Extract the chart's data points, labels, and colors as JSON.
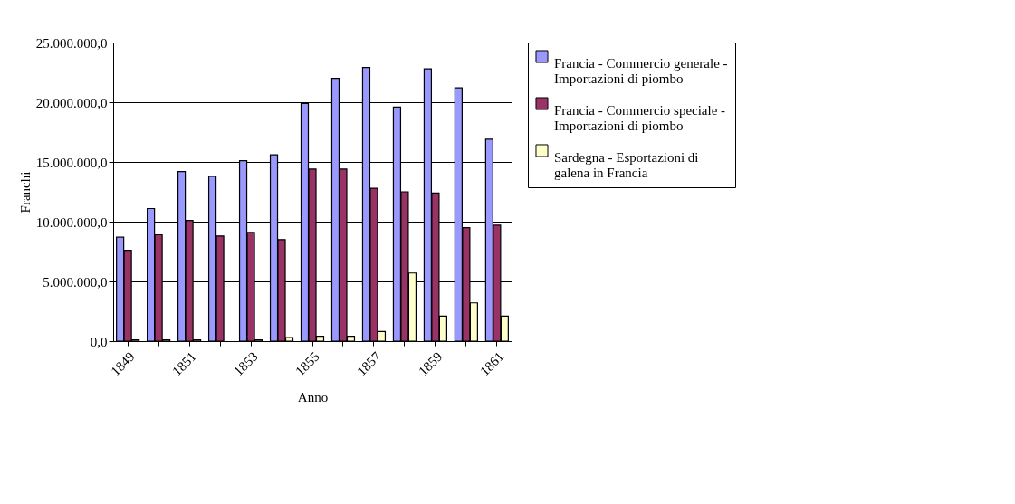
{
  "chart_data": {
    "type": "bar",
    "xlabel": "Anno",
    "ylabel": "Franchi",
    "categories": [
      "1849",
      null,
      "1851",
      null,
      "1853",
      null,
      "1855",
      null,
      "1857",
      null,
      "1859",
      null,
      "1861"
    ],
    "series": [
      {
        "name": "Francia - Commercio generale - Importazioni di piombo",
        "color": "#9999ff",
        "values": [
          8700000,
          11100000,
          14200000,
          13800000,
          15100000,
          15600000,
          19900000,
          22000000,
          22900000,
          19600000,
          22800000,
          21200000,
          16900000
        ]
      },
      {
        "name": "Francia - Commercio speciale - Importazioni di piombo",
        "color": "#993366",
        "values": [
          7600000,
          8900000,
          10100000,
          8800000,
          9100000,
          8500000,
          14400000,
          14400000,
          12800000,
          12500000,
          12400000,
          9500000,
          9700000
        ]
      },
      {
        "name": "Sardegna - Esportazioni di galena in Francia",
        "color": "#ffffcc",
        "values": [
          100000,
          100000,
          100000,
          null,
          100000,
          300000,
          400000,
          400000,
          800000,
          5700000,
          2100000,
          3200000,
          2100000
        ]
      }
    ],
    "ylim": [
      0,
      25000000
    ],
    "yticks": [
      {
        "value": 0,
        "label": "0,0"
      },
      {
        "value": 5000000,
        "label": "5.000.000,0"
      },
      {
        "value": 10000000,
        "label": "10.000.000,0"
      },
      {
        "value": 15000000,
        "label": "15.000.000,0"
      },
      {
        "value": 20000000,
        "label": "20.000.000,0"
      },
      {
        "value": 25000000,
        "label": "25.000.000,0"
      }
    ],
    "grid": "y",
    "legend": "right"
  }
}
